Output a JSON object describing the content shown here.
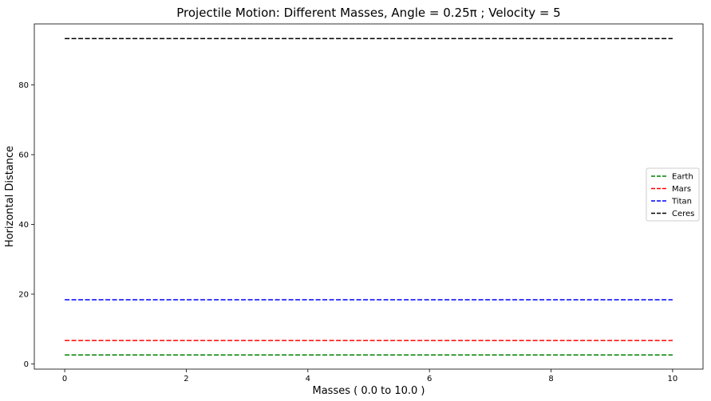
{
  "chart_data": {
    "type": "line",
    "title": "Projectile Motion: Different Masses, Angle = 0.25π ; Velocity = 5",
    "xlabel": "Masses ( 0.0 to 10.0 )",
    "ylabel": "Horizontal Distance",
    "xlim": [
      -0.5,
      10.5
    ],
    "ylim": [
      -1.5,
      97.5
    ],
    "xticks": [
      0,
      2,
      4,
      6,
      8,
      10
    ],
    "yticks": [
      0,
      20,
      40,
      60,
      80
    ],
    "x": [
      0,
      10
    ],
    "series": [
      {
        "name": "Earth",
        "values": [
          2.55,
          2.55
        ],
        "color": "#008000",
        "style": "dashed"
      },
      {
        "name": "Mars",
        "values": [
          6.7,
          6.7
        ],
        "color": "#ff0000",
        "style": "dashed"
      },
      {
        "name": "Titan",
        "values": [
          18.4,
          18.4
        ],
        "color": "#0000ff",
        "style": "dashed"
      },
      {
        "name": "Ceres",
        "values": [
          93.3,
          93.3
        ],
        "color": "#000000",
        "style": "dashed"
      }
    ],
    "grid": false,
    "legend_position": "center-right"
  }
}
